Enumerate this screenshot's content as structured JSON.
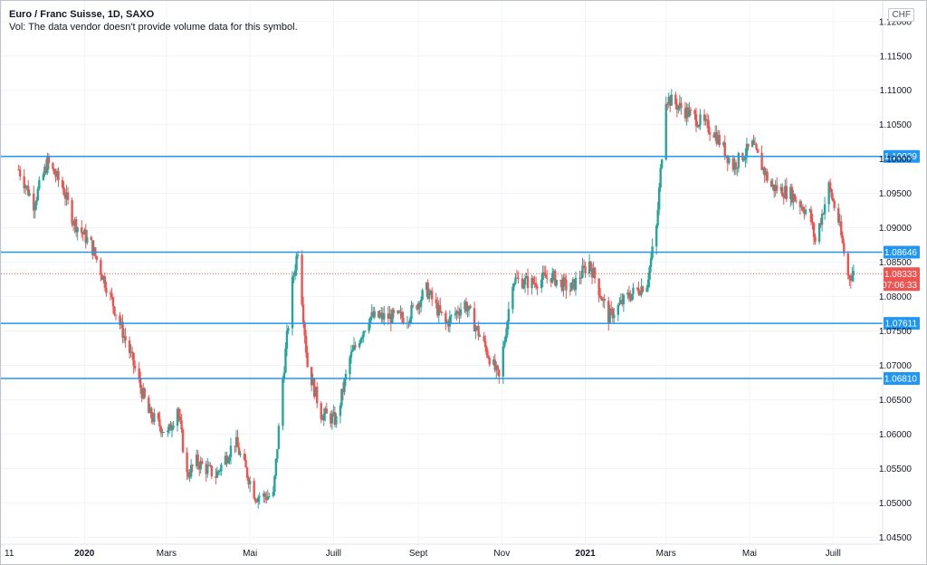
{
  "header": {
    "title": "Euro / Franc Suisse, 1D, SAXO",
    "volume_note": "Vol: The data vendor doesn't provide volume data for this symbol.",
    "currency_button": "CHF"
  },
  "colors": {
    "up": "#26a69a",
    "down": "#ef5350",
    "level": "#2196f3",
    "price": "#ef5350",
    "axis_text": "#131722"
  },
  "chart_data": {
    "type": "candlestick",
    "title": "Euro / Franc Suisse, 1D, SAXO",
    "xlabel": "",
    "ylabel": "",
    "ylim": [
      1.044,
      1.123
    ],
    "y_ticks": [
      "1.12000",
      "1.11500",
      "1.11000",
      "1.10500",
      "1.10000",
      "1.09500",
      "1.09000",
      "1.08500",
      "1.08000",
      "1.07500",
      "1.07000",
      "1.06500",
      "1.06000",
      "1.05500",
      "1.05000",
      "1.04500"
    ],
    "x_ticks": [
      "11",
      "2020",
      "Mars",
      "Mai",
      "Juill",
      "Sept",
      "Nov",
      "2021",
      "Mars",
      "Mai",
      "Juill"
    ],
    "horizontal_levels": [
      "1.10039",
      "1.08646",
      "1.07611",
      "1.06810"
    ],
    "last_price": "1.08333",
    "countdown": "07:06:33",
    "series": [
      {
        "kind": "close_path",
        "x": [
          "2019-11-14",
          "2019-11-25",
          "2019-12-05",
          "2019-12-16",
          "2019-12-24",
          "2020-01-06",
          "2020-01-20",
          "2020-02-03",
          "2020-02-17",
          "2020-03-02",
          "2020-03-09",
          "2020-03-16",
          "2020-03-23",
          "2020-04-06",
          "2020-04-20",
          "2020-05-05",
          "2020-05-18",
          "2020-05-25",
          "2020-06-01",
          "2020-06-05",
          "2020-06-12",
          "2020-06-22",
          "2020-07-03",
          "2020-07-13",
          "2020-07-27",
          "2020-08-10",
          "2020-08-24",
          "2020-09-07",
          "2020-09-21",
          "2020-10-05",
          "2020-10-19",
          "2020-10-30",
          "2020-11-09",
          "2020-11-23",
          "2020-12-07",
          "2020-12-21",
          "2021-01-04",
          "2021-01-18",
          "2021-02-01",
          "2021-02-15",
          "2021-02-22",
          "2021-03-01",
          "2021-03-08",
          "2021-03-22",
          "2021-04-05",
          "2021-04-19",
          "2021-05-03",
          "2021-05-17",
          "2021-05-31",
          "2021-06-14",
          "2021-06-18",
          "2021-06-28",
          "2021-07-05",
          "2021-07-12",
          "2021-07-16"
        ],
        "close": [
          1.0985,
          1.0935,
          1.0995,
          1.096,
          1.091,
          1.0875,
          1.08,
          1.072,
          1.063,
          1.06,
          1.064,
          1.054,
          1.056,
          1.054,
          1.059,
          1.051,
          1.051,
          1.068,
          1.082,
          1.087,
          1.07,
          1.063,
          1.062,
          1.071,
          1.077,
          1.077,
          1.077,
          1.081,
          1.076,
          1.079,
          1.073,
          1.068,
          1.0825,
          1.082,
          1.083,
          1.081,
          1.085,
          1.077,
          1.08,
          1.082,
          1.09,
          1.109,
          1.108,
          1.106,
          1.104,
          1.099,
          1.102,
          1.096,
          1.095,
          1.092,
          1.088,
          1.096,
          1.091,
          1.083,
          1.0833
        ]
      }
    ]
  }
}
